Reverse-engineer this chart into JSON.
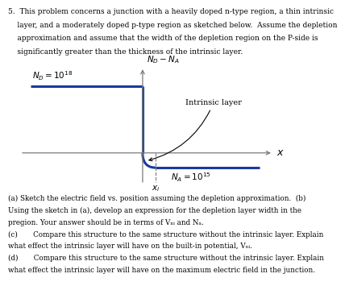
{
  "title_text": "5.  This problem concerns a junction with a heavily doped n-type region, a thin intrinsic\n    layer, and a moderately doped p-type region as sketched below.  Assume the depletion\n    approximation and assume that the width of the depletion region on the P-side is\n    significantly greater than the thickness of the intrinsic layer.",
  "ylabel": "$N_D - N_A$",
  "xlabel": "$x$",
  "nd_label": "$N_D = 10^{18}$",
  "na_label": "$N_A = 10^{15}$",
  "intrinsic_label": "Intrinsic layer",
  "xi_label": "$x_i$",
  "nd_level": 1.0,
  "na_level": -0.22,
  "line_color": "#1a3a9e",
  "axis_color": "#7a7a7a",
  "text_color": "#000000",
  "background_color": "#ffffff",
  "caption_ab": "(a) Sketch the electric field vs. position assuming the depletion approximation.  (b)",
  "caption_ab2": "Using the sketch in (a), develop an expression for the depletion layer width in the",
  "caption_ab3": "pregion. Your answer should be in terms of Vₙᵢ and Nₐ.",
  "caption_c1": "(c)       Compare this structure to the same structure without the intrinsic layer. Explain",
  "caption_c2": "what effect the intrinsic layer will have on the built-in potential, Vₙᵢ.",
  "caption_d1": "(d)       Compare this structure to the same structure without the intrinsic layer. Explain",
  "caption_d2": "what effect the intrinsic layer will have on the maximum electric field in the junction."
}
